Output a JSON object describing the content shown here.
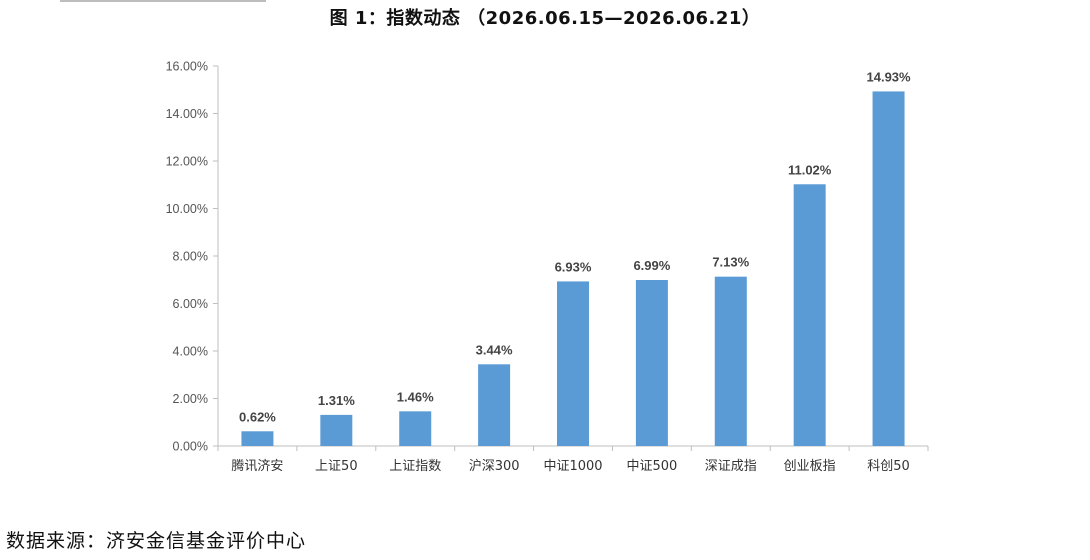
{
  "figure": {
    "title": "图 1：指数动态 （2026.06.15—2026.06.21）",
    "source_note": "数据来源：济安金信基金评价中心"
  },
  "chart_data": {
    "type": "bar",
    "categories": [
      "腾讯济安",
      "上证50",
      "上证指数",
      "沪深300",
      "中证1000",
      "中证500",
      "深证成指",
      "创业板指",
      "科创50"
    ],
    "values": [
      0.62,
      1.31,
      1.46,
      3.44,
      6.93,
      6.99,
      7.13,
      11.02,
      14.93
    ],
    "value_labels": [
      "0.62%",
      "1.31%",
      "1.46%",
      "3.44%",
      "6.93%",
      "6.99%",
      "7.13%",
      "11.02%",
      "14.93%"
    ],
    "y_ticks": [
      0,
      2,
      4,
      6,
      8,
      10,
      12,
      14,
      16
    ],
    "y_tick_labels": [
      "0.00%",
      "2.00%",
      "4.00%",
      "6.00%",
      "8.00%",
      "10.00%",
      "12.00%",
      "14.00%",
      "16.00%"
    ],
    "ylim": [
      0,
      16
    ],
    "grid": false,
    "legend": "none",
    "bar_color": "#5B9BD5",
    "axis_color": "#BFBFBF"
  }
}
